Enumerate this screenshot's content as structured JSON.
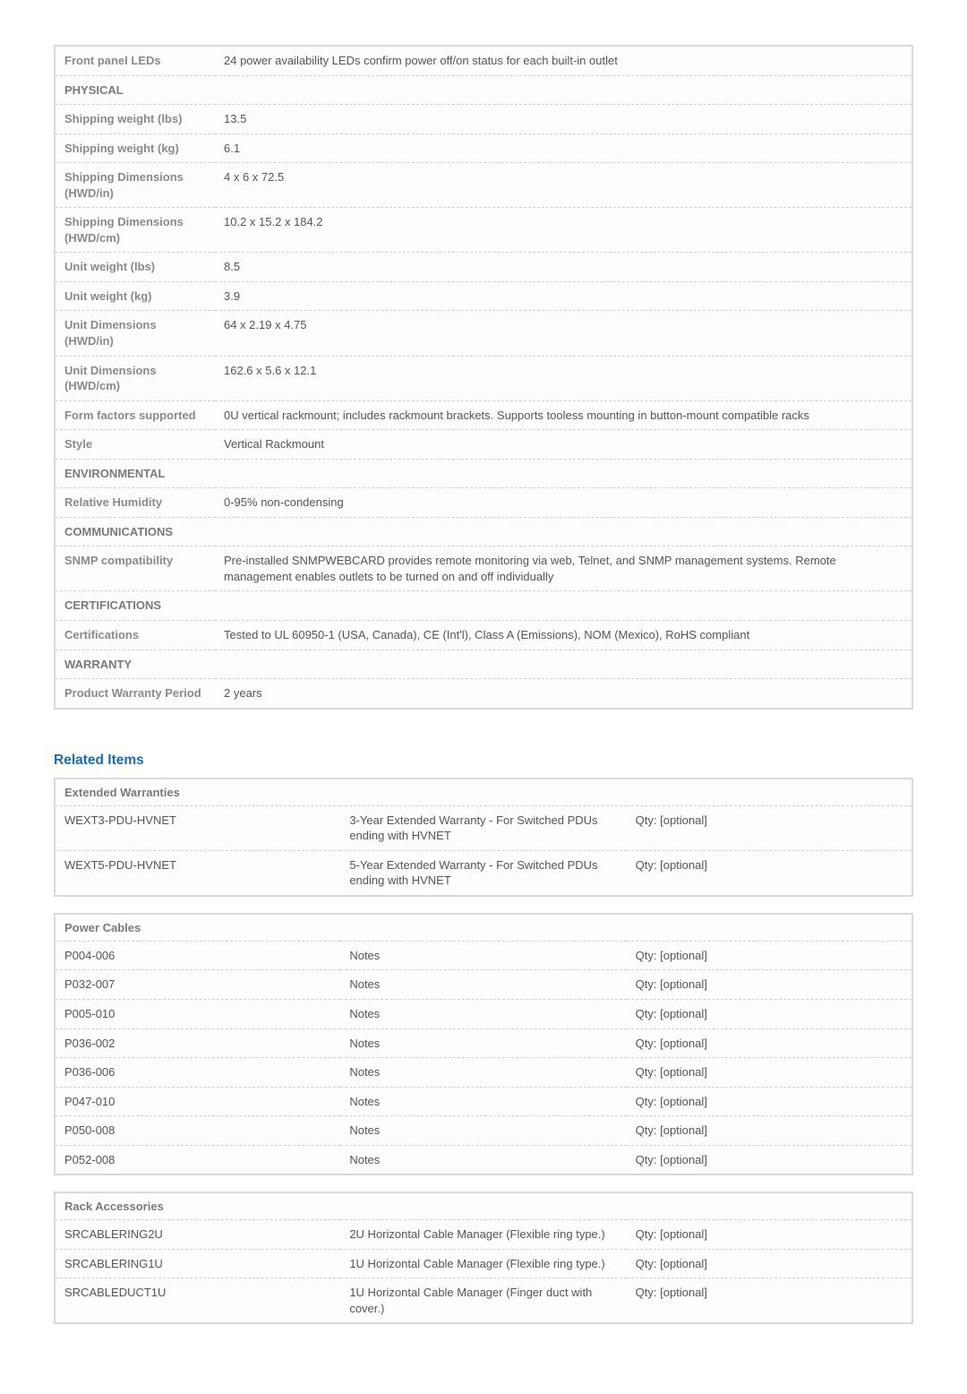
{
  "spec_sections": [
    {
      "rows": [
        {
          "label": "Front panel LEDs",
          "value": "24 power availability LEDs confirm power off/on status for each built-in outlet"
        }
      ]
    },
    {
      "header": "PHYSICAL",
      "rows": [
        {
          "label": "Shipping weight (lbs)",
          "value": "13.5"
        },
        {
          "label": "Shipping weight (kg)",
          "value": "6.1"
        },
        {
          "label": "Shipping Dimensions (HWD/in)",
          "value": "4 x 6 x 72.5"
        },
        {
          "label": "Shipping Dimensions (HWD/cm)",
          "value": "10.2 x 15.2 x 184.2"
        },
        {
          "label": "Unit weight (lbs)",
          "value": "8.5"
        },
        {
          "label": "Unit weight (kg)",
          "value": "3.9"
        },
        {
          "label": "Unit Dimensions (HWD/in)",
          "value": "64 x 2.19 x 4.75"
        },
        {
          "label": "Unit Dimensions (HWD/cm)",
          "value": "162.6 x 5.6 x 12.1"
        },
        {
          "label": "Form factors supported",
          "value": "0U vertical rackmount; includes rackmount brackets. Supports tooless mounting in button-mount compatible racks"
        },
        {
          "label": "Style",
          "value": "Vertical Rackmount"
        }
      ]
    },
    {
      "header": "ENVIRONMENTAL",
      "rows": [
        {
          "label": "Relative Humidity",
          "value": "0-95% non-condensing"
        }
      ]
    },
    {
      "header": "COMMUNICATIONS",
      "rows": [
        {
          "label": "SNMP compatibility",
          "value": "Pre-installed SNMPWEBCARD provides remote monitoring via web, Telnet, and SNMP management systems. Remote management enables outlets to be turned on and off individually"
        }
      ]
    },
    {
      "header": "CERTIFICATIONS",
      "rows": [
        {
          "label": "Certifications",
          "value": "Tested to UL 60950-1 (USA, Canada), CE (Int'l), Class A (Emissions), NOM (Mexico), RoHS compliant"
        }
      ]
    },
    {
      "header": "WARRANTY",
      "rows": [
        {
          "label": "Product Warranty Period",
          "value": "2 years"
        }
      ]
    }
  ],
  "related_title": "Related Items",
  "related_tables": [
    {
      "header": "Extended Warranties",
      "rows": [
        {
          "sku": "WEXT3-PDU-HVNET",
          "desc": "3-Year Extended Warranty - For Switched PDUs ending with HVNET",
          "qty": "Qty: [optional]"
        },
        {
          "sku": "WEXT5-PDU-HVNET",
          "desc": "5-Year Extended Warranty - For Switched PDUs ending with HVNET",
          "qty": "Qty: [optional]"
        }
      ]
    },
    {
      "header": "Power Cables",
      "rows": [
        {
          "sku": "P004-006",
          "desc": "Notes",
          "qty": "Qty: [optional]"
        },
        {
          "sku": "P032-007",
          "desc": "Notes",
          "qty": "Qty: [optional]"
        },
        {
          "sku": "P005-010",
          "desc": "Notes",
          "qty": "Qty: [optional]"
        },
        {
          "sku": "P036-002",
          "desc": "Notes",
          "qty": "Qty: [optional]"
        },
        {
          "sku": "P036-006",
          "desc": "Notes",
          "qty": "Qty: [optional]"
        },
        {
          "sku": "P047-010",
          "desc": "Notes",
          "qty": "Qty: [optional]"
        },
        {
          "sku": "P050-008",
          "desc": "Notes",
          "qty": "Qty: [optional]"
        },
        {
          "sku": "P052-008",
          "desc": "Notes",
          "qty": "Qty: [optional]"
        }
      ]
    },
    {
      "header": "Rack Accessories",
      "rows": [
        {
          "sku": "SRCABLERING2U",
          "desc": "2U Horizontal Cable Manager (Flexible ring type.)",
          "qty": "Qty: [optional]"
        },
        {
          "sku": "SRCABLERING1U",
          "desc": "1U Horizontal Cable Manager (Flexible ring type.)",
          "qty": "Qty: [optional]"
        },
        {
          "sku": "SRCABLEDUCT1U",
          "desc": "1U Horizontal Cable Manager (Finger duct with cover.)",
          "qty": "Qty: [optional]"
        }
      ]
    }
  ]
}
